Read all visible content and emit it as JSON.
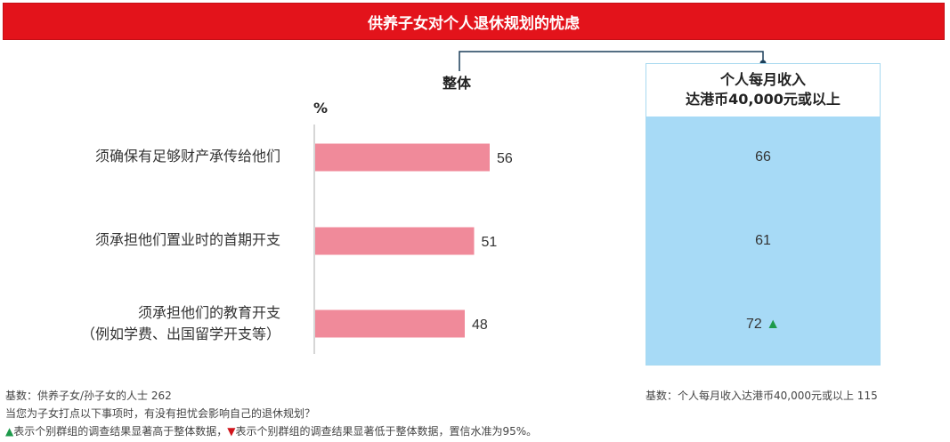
{
  "title": "供养子女对个人退休规划的忧虑",
  "headers": {
    "overall": "整体",
    "unit": "%"
  },
  "panel": {
    "title_line1": "个人每月收入",
    "title_line2": "达港币40,000元或以上",
    "values": [
      "66",
      "61",
      "72"
    ],
    "marker": "▲"
  },
  "chart_data": {
    "type": "bar",
    "orientation": "horizontal",
    "categories": [
      [
        "须确保有足够财产承传给他们"
      ],
      [
        "须承担他们置业时的首期开支"
      ],
      [
        "须承担他们的教育开支",
        "（例如学费、出国留学开支等）"
      ]
    ],
    "series": [
      {
        "values": [
          56,
          51,
          48
        ]
      }
    ],
    "subgroup_values": [
      66,
      61,
      72
    ],
    "subgroup_significance": [
      "",
      "",
      "higher"
    ],
    "xlim": [
      0,
      100
    ],
    "bar_color": "#f08a9a"
  },
  "footer": {
    "base_left": "基数：供养子女/孙子女的人士 262",
    "question": "当您为子女打点以下事项时，有没有担忧会影响自己的退休规划？",
    "legend_up_icon": "▲",
    "legend_up_text": "表示个别群组的调查结果显著高于整体数据，",
    "legend_down_icon": "▼",
    "legend_down_text": "表示个别群组的调查结果显著低于整体数据，置信水准为95%。",
    "base_right": "基数：个人每月收入达港币40,000元或以上  115"
  }
}
